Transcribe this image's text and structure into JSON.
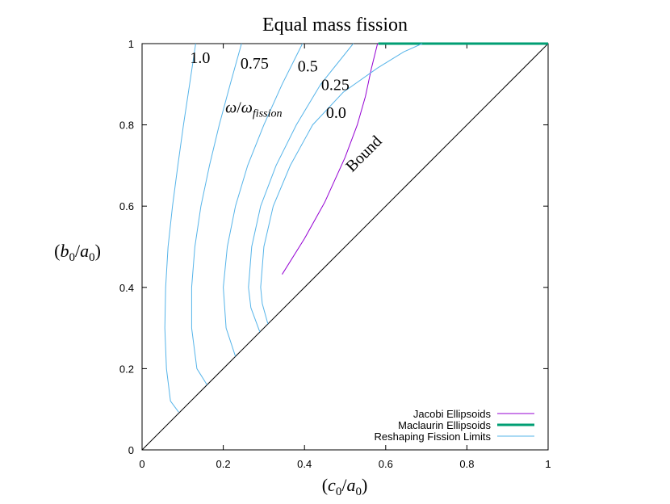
{
  "chart_data": {
    "type": "line",
    "title": "Equal mass fission",
    "xlabel": "(c0/a0)",
    "ylabel": "(b0/a0)",
    "xlabel_parts": {
      "open": "(",
      "var": "c",
      "sub": "0",
      "slash": "/",
      "var2": "a",
      "sub2": "0",
      "close": ")"
    },
    "ylabel_parts": {
      "open": "(",
      "var": "b",
      "sub": "0",
      "slash": "/",
      "var2": "a",
      "sub2": "0",
      "close": ")"
    },
    "xlim": [
      0,
      1
    ],
    "ylim": [
      0,
      1
    ],
    "grid": false,
    "legend_position": "bottom-right",
    "x_ticks": [
      {
        "value": 0,
        "label": "0"
      },
      {
        "value": 0.2,
        "label": "0.2"
      },
      {
        "value": 0.4,
        "label": "0.4"
      },
      {
        "value": 0.6,
        "label": "0.6"
      },
      {
        "value": 0.8,
        "label": "0.8"
      },
      {
        "value": 1,
        "label": "1"
      }
    ],
    "y_ticks": [
      {
        "value": 0,
        "label": "0"
      },
      {
        "value": 0.2,
        "label": "0.2"
      },
      {
        "value": 0.4,
        "label": "0.4"
      },
      {
        "value": 0.6,
        "label": "0.6"
      },
      {
        "value": 0.8,
        "label": "0.8"
      },
      {
        "value": 1,
        "label": "1"
      }
    ],
    "colors": {
      "jacobi": "#9400d3",
      "maclaurin": "#009e73",
      "reshaping": "#56b4e9",
      "diagonal": "#000000",
      "axes": "#000000"
    },
    "series": [
      {
        "name": "Jacobi Ellipsoids",
        "key": "jacobi",
        "points": [
          [
            0.345,
            0.432
          ],
          [
            0.4,
            0.52
          ],
          [
            0.45,
            0.61
          ],
          [
            0.5,
            0.72
          ],
          [
            0.53,
            0.8
          ],
          [
            0.55,
            0.87
          ],
          [
            0.565,
            0.94
          ],
          [
            0.58,
            1.0
          ]
        ]
      },
      {
        "name": "Maclaurin Ellipsoids",
        "key": "maclaurin",
        "points": [
          [
            0.582,
            1.0
          ],
          [
            1.0,
            1.0
          ]
        ]
      },
      {
        "name": "Reshaping Fission Limits",
        "key": "reshaping",
        "curves": [
          {
            "label": "1.0",
            "points": [
              [
                0.09,
                0.093
              ],
              [
                0.07,
                0.12
              ],
              [
                0.06,
                0.2
              ],
              [
                0.056,
                0.3
              ],
              [
                0.058,
                0.4
              ],
              [
                0.064,
                0.5
              ],
              [
                0.075,
                0.6
              ],
              [
                0.088,
                0.7
              ],
              [
                0.102,
                0.8
              ],
              [
                0.117,
                0.9
              ],
              [
                0.132,
                1.0
              ]
            ]
          },
          {
            "label": "0.75",
            "points": [
              [
                0.16,
                0.16
              ],
              [
                0.135,
                0.2
              ],
              [
                0.122,
                0.3
              ],
              [
                0.122,
                0.4
              ],
              [
                0.13,
                0.5
              ],
              [
                0.145,
                0.6
              ],
              [
                0.166,
                0.7
              ],
              [
                0.19,
                0.8
              ],
              [
                0.217,
                0.9
              ],
              [
                0.245,
                1.0
              ]
            ]
          },
          {
            "label": "0.5",
            "points": [
              [
                0.23,
                0.23
              ],
              [
                0.207,
                0.3
              ],
              [
                0.2,
                0.4
              ],
              [
                0.21,
                0.5
              ],
              [
                0.23,
                0.6
              ],
              [
                0.26,
                0.7
              ],
              [
                0.3,
                0.8
              ],
              [
                0.345,
                0.9
              ],
              [
                0.395,
                1.0
              ]
            ]
          },
          {
            "label": "0.25",
            "points": [
              [
                0.29,
                0.29
              ],
              [
                0.268,
                0.35
              ],
              [
                0.262,
                0.4
              ],
              [
                0.27,
                0.5
              ],
              [
                0.292,
                0.6
              ],
              [
                0.33,
                0.7
              ],
              [
                0.38,
                0.8
              ],
              [
                0.44,
                0.9
              ],
              [
                0.52,
                1.0
              ]
            ]
          },
          {
            "label": "0.0",
            "points": [
              [
                0.31,
                0.31
              ],
              [
                0.296,
                0.36
              ],
              [
                0.292,
                0.4
              ],
              [
                0.3,
                0.5
              ],
              [
                0.323,
                0.6
              ],
              [
                0.365,
                0.7
              ],
              [
                0.42,
                0.8
              ],
              [
                0.495,
                0.88
              ],
              [
                0.58,
                0.94
              ],
              [
                0.645,
                0.98
              ],
              [
                0.69,
                1.0
              ]
            ]
          }
        ]
      }
    ],
    "diagonal": {
      "points": [
        [
          0,
          0
        ],
        [
          1,
          1
        ]
      ]
    },
    "annotations": [
      {
        "key": "a10",
        "text": "1.0",
        "x": 0.143,
        "y": 0.952
      },
      {
        "key": "a075",
        "text": "0.75",
        "x": 0.277,
        "y": 0.938
      },
      {
        "key": "a05",
        "text": "0.5",
        "x": 0.408,
        "y": 0.931
      },
      {
        "key": "a025",
        "text": "0.25",
        "x": 0.476,
        "y": 0.886
      },
      {
        "key": "a00",
        "text": "0.0",
        "x": 0.478,
        "y": 0.817
      },
      {
        "key": "bound",
        "text": "Bound",
        "x": 0.555,
        "y": 0.72,
        "rotate": -45
      }
    ],
    "omega_label": {
      "text": "ω/ωfission",
      "num": "ω",
      "slash": "/",
      "den": "ω",
      "sub": "fission",
      "x": 0.205,
      "y": 0.83
    }
  }
}
